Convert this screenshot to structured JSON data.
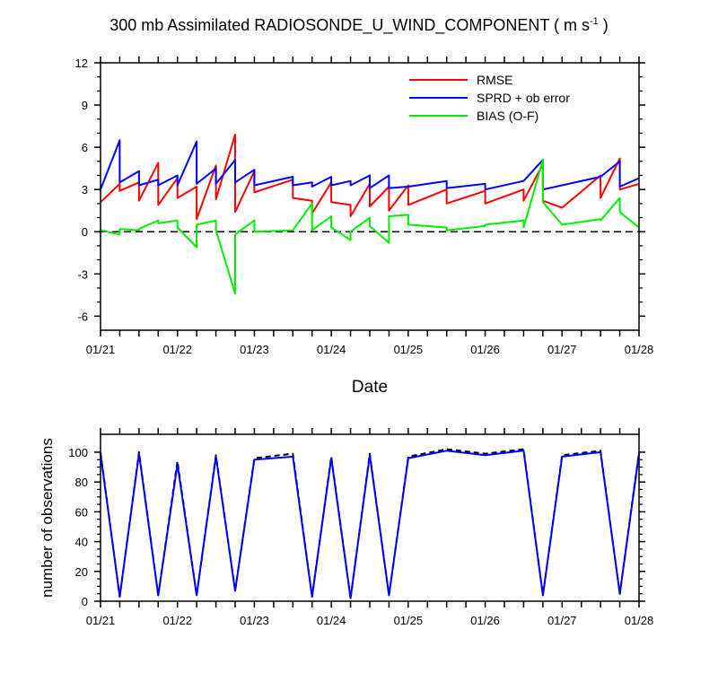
{
  "title": {
    "text": "300 mb Assimilated RADIOSONDE_U_WIND_COMPONENT ( m s",
    "sup": "-1",
    "close": " )"
  },
  "chart_data": [
    {
      "type": "line",
      "xlabel": "Date",
      "ylabel": "",
      "x_ticks": [
        "01/21",
        "01/22",
        "01/23",
        "01/24",
        "01/25",
        "01/26",
        "01/27",
        "01/28"
      ],
      "xlim": [
        0,
        7
      ],
      "ylim": [
        -7,
        12
      ],
      "y_ticks": [
        "12",
        "9",
        "6",
        "3",
        "0",
        "-3",
        "-6"
      ],
      "y_tick_values": [
        12,
        9,
        6,
        3,
        0,
        -3,
        -6
      ],
      "zero_line": "dashed",
      "legend": {
        "position": "top-right",
        "entries": [
          "RMSE",
          "SPRD + ob error",
          "BIAS (O-F)"
        ]
      },
      "series": [
        {
          "name": "RMSE",
          "color": "#ff0000",
          "points": [
            [
              0,
              2.1
            ],
            [
              0.25,
              3.4
            ],
            [
              0.25,
              2.9
            ],
            [
              0.5,
              3.5
            ],
            [
              0.5,
              2.2
            ],
            [
              0.75,
              4.9
            ],
            [
              0.75,
              1.9
            ],
            [
              1,
              3.8
            ],
            [
              1,
              2.4
            ],
            [
              1.25,
              3.2
            ],
            [
              1.25,
              0.9
            ],
            [
              1.5,
              4.7
            ],
            [
              1.5,
              2.3
            ],
            [
              1.75,
              6.9
            ],
            [
              1.75,
              1.4
            ],
            [
              2,
              4.3
            ],
            [
              2,
              2.8
            ],
            [
              2.5,
              3.7
            ],
            [
              2.5,
              2.4
            ],
            [
              2.75,
              2.2
            ],
            [
              2.75,
              1.3
            ],
            [
              3,
              3.5
            ],
            [
              3,
              2.1
            ],
            [
              3.25,
              1.9
            ],
            [
              3.25,
              1.1
            ],
            [
              3.5,
              3.4
            ],
            [
              3.5,
              1.8
            ],
            [
              3.75,
              3.2
            ],
            [
              3.75,
              1.5
            ],
            [
              4,
              3.3
            ],
            [
              4,
              1.9
            ],
            [
              4.5,
              3.0
            ],
            [
              4.5,
              2.0
            ],
            [
              5,
              2.9
            ],
            [
              5,
              2.0
            ],
            [
              5.5,
              3.0
            ],
            [
              5.5,
              2.2
            ],
            [
              5.75,
              4.8
            ],
            [
              5.75,
              2.2
            ],
            [
              6,
              1.7
            ],
            [
              6.5,
              4.0
            ],
            [
              6.5,
              2.4
            ],
            [
              6.75,
              5.2
            ],
            [
              6.75,
              3.0
            ],
            [
              7,
              3.4
            ]
          ]
        },
        {
          "name": "SPRD + ob error",
          "color": "#0000ff",
          "points": [
            [
              0,
              3.0
            ],
            [
              0.25,
              6.5
            ],
            [
              0.25,
              3.5
            ],
            [
              0.5,
              4.3
            ],
            [
              0.5,
              3.3
            ],
            [
              0.75,
              3.7
            ],
            [
              0.75,
              3.3
            ],
            [
              1,
              4.0
            ],
            [
              1,
              3.3
            ],
            [
              1.25,
              6.4
            ],
            [
              1.25,
              3.4
            ],
            [
              1.5,
              4.5
            ],
            [
              1.5,
              3.4
            ],
            [
              1.75,
              5.1
            ],
            [
              1.75,
              3.5
            ],
            [
              2,
              4.4
            ],
            [
              2,
              3.3
            ],
            [
              2.5,
              3.9
            ],
            [
              2.5,
              3.3
            ],
            [
              2.75,
              3.5
            ],
            [
              2.75,
              3.2
            ],
            [
              3,
              3.9
            ],
            [
              3,
              3.3
            ],
            [
              3.25,
              3.6
            ],
            [
              3.25,
              3.3
            ],
            [
              3.5,
              4.0
            ],
            [
              3.5,
              3.1
            ],
            [
              3.75,
              4.0
            ],
            [
              3.75,
              3.1
            ],
            [
              4,
              3.2
            ],
            [
              4.5,
              3.6
            ],
            [
              4.5,
              3.1
            ],
            [
              5,
              3.4
            ],
            [
              5,
              3.0
            ],
            [
              5.5,
              3.6
            ],
            [
              5.75,
              5.1
            ],
            [
              5.75,
              3.0
            ],
            [
              6,
              3.3
            ],
            [
              6.5,
              3.9
            ],
            [
              6.75,
              5.0
            ],
            [
              6.75,
              3.2
            ],
            [
              7,
              3.8
            ]
          ]
        },
        {
          "name": "BIAS (O-F)",
          "color": "#00ee00",
          "points": [
            [
              0,
              0.1
            ],
            [
              0.25,
              -0.2
            ],
            [
              0.25,
              0.2
            ],
            [
              0.5,
              0.1
            ],
            [
              0.5,
              0.2
            ],
            [
              0.75,
              0.8
            ],
            [
              0.75,
              0.6
            ],
            [
              1,
              0.8
            ],
            [
              1,
              0.3
            ],
            [
              1.25,
              -1.1
            ],
            [
              1.25,
              0.5
            ],
            [
              1.5,
              0.8
            ],
            [
              1.5,
              0.1
            ],
            [
              1.75,
              -4.4
            ],
            [
              1.75,
              -0.2
            ],
            [
              2,
              0.8
            ],
            [
              2,
              0.0
            ],
            [
              2.5,
              0.1
            ],
            [
              2.5,
              0.1
            ],
            [
              2.75,
              2.0
            ],
            [
              2.75,
              0.1
            ],
            [
              3,
              1.1
            ],
            [
              3,
              0.3
            ],
            [
              3.25,
              -0.6
            ],
            [
              3.25,
              0.0
            ],
            [
              3.5,
              1.0
            ],
            [
              3.5,
              0.4
            ],
            [
              3.75,
              -0.8
            ],
            [
              3.75,
              1.1
            ],
            [
              4,
              1.2
            ],
            [
              4,
              0.5
            ],
            [
              4.5,
              0.3
            ],
            [
              4.5,
              0.1
            ],
            [
              5,
              0.4
            ],
            [
              5,
              0.5
            ],
            [
              5.5,
              0.8
            ],
            [
              5.5,
              0.3
            ],
            [
              5.75,
              5.1
            ],
            [
              5.75,
              2.1
            ],
            [
              6,
              0.5
            ],
            [
              6.5,
              0.9
            ],
            [
              6.5,
              0.8
            ],
            [
              6.75,
              2.4
            ],
            [
              6.75,
              1.4
            ],
            [
              7,
              0.3
            ]
          ]
        }
      ]
    },
    {
      "type": "line",
      "xlabel": "",
      "ylabel": "number of observations",
      "x_ticks": [
        "01/21",
        "01/22",
        "01/23",
        "01/24",
        "01/25",
        "01/26",
        "01/27",
        "01/28"
      ],
      "xlim": [
        0,
        7
      ],
      "ylim": [
        0,
        112
      ],
      "y_ticks": [
        "100",
        "80",
        "60",
        "40",
        "20",
        "0"
      ],
      "y_tick_values": [
        100,
        80,
        60,
        40,
        20,
        0
      ],
      "series": [
        {
          "style": "dashed",
          "color": "#000000",
          "points": [
            [
              0,
              100
            ],
            [
              0.25,
              3
            ],
            [
              0.5,
              100
            ],
            [
              0.75,
              4
            ],
            [
              1,
              94
            ],
            [
              1.25,
              4
            ],
            [
              1.5,
              98
            ],
            [
              1.75,
              7
            ],
            [
              2,
              96
            ],
            [
              2.5,
              99
            ],
            [
              2.75,
              3
            ],
            [
              3,
              97
            ],
            [
              3.25,
              2
            ],
            [
              3.5,
              99
            ],
            [
              3.75,
              4
            ],
            [
              4,
              97
            ],
            [
              4.5,
              102
            ],
            [
              5,
              99
            ],
            [
              5.5,
              102
            ],
            [
              5.75,
              4
            ],
            [
              6,
              98
            ],
            [
              6.5,
              101
            ],
            [
              6.75,
              5
            ],
            [
              7,
              100
            ]
          ]
        },
        {
          "style": "solid",
          "color": "#0000ff",
          "points": [
            [
              0,
              99
            ],
            [
              0.25,
              3
            ],
            [
              0.5,
              99
            ],
            [
              0.75,
              4
            ],
            [
              1,
              92
            ],
            [
              1.25,
              4
            ],
            [
              1.5,
              97
            ],
            [
              1.75,
              7
            ],
            [
              2,
              95
            ],
            [
              2.5,
              97
            ],
            [
              2.75,
              3
            ],
            [
              3,
              96
            ],
            [
              3.25,
              2
            ],
            [
              3.5,
              98
            ],
            [
              3.75,
              4
            ],
            [
              4,
              96
            ],
            [
              4.5,
              101
            ],
            [
              5,
              98
            ],
            [
              5.5,
              101
            ],
            [
              5.75,
              4
            ],
            [
              6,
              97
            ],
            [
              6.5,
              100
            ],
            [
              6.75,
              5
            ],
            [
              7,
              99
            ]
          ]
        }
      ]
    }
  ]
}
